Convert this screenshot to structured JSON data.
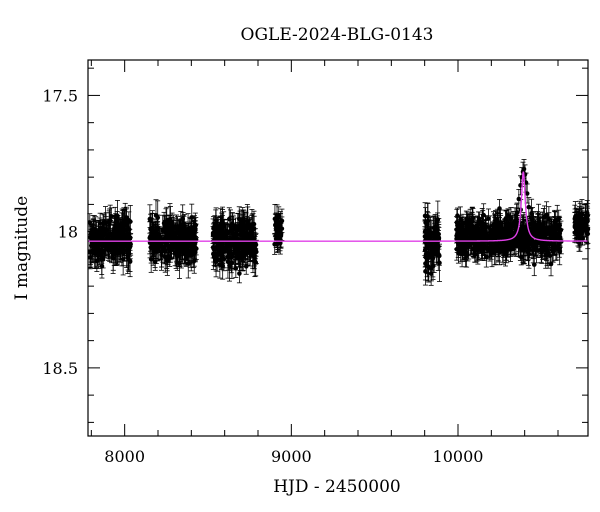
{
  "chart_data": {
    "type": "scatter",
    "title": "OGLE-2024-BLG-0143",
    "xlabel": "HJD - 2450000",
    "ylabel": "I magnitude",
    "xlim": [
      7780,
      10780
    ],
    "ylim": [
      18.75,
      17.37
    ],
    "y_inverted": true,
    "xticks_major": [
      8000,
      9000,
      10000
    ],
    "yticks_major": [
      17.5,
      18,
      18.5
    ],
    "ytick_labels": [
      "17.5",
      "18",
      "18.5"
    ],
    "xtick_labels": [
      "8000",
      "9000",
      "10000"
    ],
    "grid": false,
    "data_color": "#000000",
    "model_color": "#e040e8",
    "series": [
      {
        "kind": "observations_with_errorbars",
        "seasons": [
          {
            "x_start": 7790,
            "x_end": 8040,
            "mag_mean": 18.03,
            "mag_spread": 0.07,
            "err": 0.045
          },
          {
            "x_start": 8150,
            "x_end": 8430,
            "mag_mean": 18.03,
            "mag_spread": 0.065,
            "err": 0.045
          },
          {
            "x_start": 8530,
            "x_end": 8790,
            "mag_mean": 18.04,
            "mag_spread": 0.07,
            "err": 0.045
          },
          {
            "x_start": 8900,
            "x_end": 8945,
            "mag_mean": 18.0,
            "mag_spread": 0.05,
            "err": 0.04
          },
          {
            "x_start": 9800,
            "x_end": 9890,
            "mag_mean": 18.04,
            "mag_spread": 0.09,
            "err": 0.05
          },
          {
            "x_start": 9990,
            "x_end": 10620,
            "mag_mean": 18.02,
            "mag_spread": 0.06,
            "err": 0.04
          },
          {
            "x_start": 10700,
            "x_end": 10780,
            "mag_mean": 17.98,
            "mag_spread": 0.04,
            "err": 0.04
          }
        ],
        "event_points": [
          {
            "x": 10340,
            "y": 17.97
          },
          {
            "x": 10355,
            "y": 17.93
          },
          {
            "x": 10365,
            "y": 17.88
          },
          {
            "x": 10375,
            "y": 17.83
          },
          {
            "x": 10383,
            "y": 17.8
          },
          {
            "x": 10390,
            "y": 17.78
          },
          {
            "x": 10396,
            "y": 17.77
          },
          {
            "x": 10402,
            "y": 17.79
          },
          {
            "x": 10408,
            "y": 17.82
          },
          {
            "x": 10415,
            "y": 17.86
          },
          {
            "x": 10425,
            "y": 17.91
          },
          {
            "x": 10438,
            "y": 17.95
          },
          {
            "x": 10455,
            "y": 17.98
          },
          {
            "x": 10475,
            "y": 18.0
          }
        ]
      },
      {
        "kind": "model_curve",
        "baseline": 18.035,
        "peak_mag": 17.78,
        "t0": 10392,
        "tE": 28
      }
    ]
  }
}
